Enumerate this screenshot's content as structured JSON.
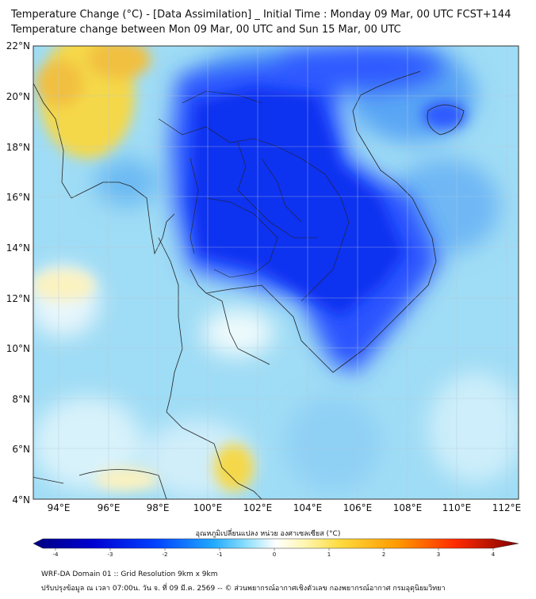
{
  "header": {
    "title_line1": "Temperature Change (°C) - [Data Assimilation] _ Initial Time : Monday 09 Mar, 00 UTC FCST+144",
    "title_line2": "Temperature change between Mon 09 Mar, 00 UTC and Sun 15 Mar, 00 UTC"
  },
  "map": {
    "lat_labels": [
      "22°N",
      "20°N",
      "18°N",
      "16°N",
      "14°N",
      "12°N",
      "10°N",
      "8°N",
      "6°N",
      "4°N"
    ],
    "lon_labels": [
      "94°E",
      "96°E",
      "98°E",
      "100°E",
      "102°E",
      "104°E",
      "106°E",
      "108°E",
      "110°E",
      "112°E"
    ],
    "lat_range": [
      4,
      22
    ],
    "lon_range": [
      93,
      112.5
    ],
    "field_colors": {
      "strong_cooling": "#1e3cff",
      "moderate_cooling": "#3c82ff",
      "light_cooling": "#7ccdf5",
      "near_zero": "#d8f2fb",
      "warming": "#f5d84a",
      "coast_line": "#222222"
    }
  },
  "colorbar": {
    "label": "อุณหภูมิเปลี่ยนแปลง หน่วย องศาเซลเซียส (°C)",
    "ticks": [
      "-4",
      "-3",
      "-2",
      "-1",
      "0",
      "1",
      "2",
      "3",
      "4"
    ],
    "range": [
      -4,
      4
    ],
    "stops": [
      "#00007f",
      "#0000ff",
      "#1e5cff",
      "#37b4ff",
      "#ffffff",
      "#ffe680",
      "#ff9a00",
      "#ff2000",
      "#7f0000"
    ]
  },
  "footer": {
    "line1": "WRF-DA Domain 01 :: Grid Resolution 9km x 9km",
    "line2": "ปรับปรุงข้อมูล ณ เวลา 07:00น. วัน จ. ที่ 09 มี.ค. 2569 -- © ส่วนพยากรณ์อากาศเชิงตัวเลข กองพยากรณ์อากาศ กรมอุตุนิยมวิทยา"
  }
}
